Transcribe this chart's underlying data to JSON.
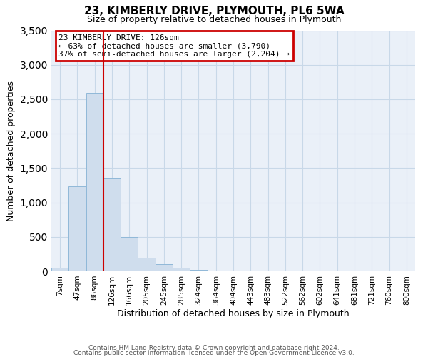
{
  "title": "23, KIMBERLY DRIVE, PLYMOUTH, PL6 5WA",
  "subtitle": "Size of property relative to detached houses in Plymouth",
  "xlabel": "Distribution of detached houses by size in Plymouth",
  "ylabel": "Number of detached properties",
  "bar_labels": [
    "7sqm",
    "47sqm",
    "86sqm",
    "126sqm",
    "166sqm",
    "205sqm",
    "245sqm",
    "285sqm",
    "324sqm",
    "364sqm",
    "404sqm",
    "443sqm",
    "483sqm",
    "522sqm",
    "562sqm",
    "602sqm",
    "641sqm",
    "681sqm",
    "721sqm",
    "760sqm",
    "800sqm"
  ],
  "bar_values": [
    50,
    1230,
    2590,
    1350,
    500,
    200,
    105,
    50,
    25,
    10,
    5,
    0,
    5,
    0,
    0,
    0,
    0,
    0,
    0,
    0,
    0
  ],
  "bar_color": "#cfdded",
  "bar_edgecolor": "#90b8d8",
  "vline_color": "#cc0000",
  "annotation_title": "23 KIMBERLY DRIVE: 126sqm",
  "annotation_line1": "← 63% of detached houses are smaller (3,790)",
  "annotation_line2": "37% of semi-detached houses are larger (2,204) →",
  "annotation_box_edgecolor": "#cc0000",
  "ylim": [
    0,
    3500
  ],
  "yticks": [
    0,
    500,
    1000,
    1500,
    2000,
    2500,
    3000,
    3500
  ],
  "grid_color": "#c8d8e8",
  "background_color": "#eaf0f8",
  "footer1": "Contains HM Land Registry data © Crown copyright and database right 2024.",
  "footer2": "Contains public sector information licensed under the Open Government Licence v3.0."
}
